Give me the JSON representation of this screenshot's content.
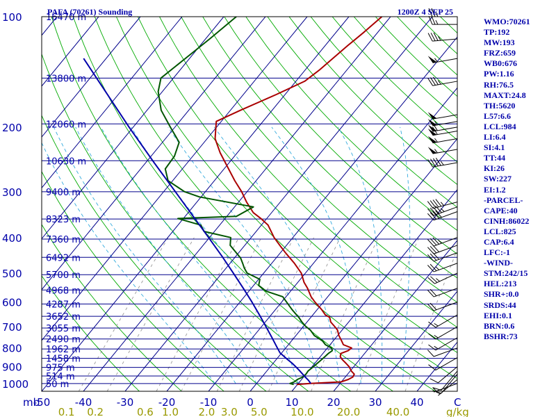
{
  "header": {
    "station_title": "PAFA (70261) Sounding",
    "time_label": "1200Z  4 SEP 25"
  },
  "colors": {
    "background": "#ffffff",
    "plot_area": "#ffffff",
    "frame": "#000000",
    "isobar": "#00008b",
    "dry_adiabat": "#00aa00",
    "isotherm": "#00008b",
    "mixing_ratio": "#999999",
    "moist_adiabat": "#33aadd",
    "temperature": "#aa0000",
    "dewpoint": "#005500",
    "parcel": "#0000aa",
    "axis_text": "#0000aa",
    "mixing_text": "#999900"
  },
  "units_label": "mb",
  "mixing_units_label": "g/kg",
  "chart_data": {
    "type": "line",
    "diagram": "skew-T log-P",
    "pressure_ticks": [
      100,
      200,
      300,
      400,
      500,
      600,
      700,
      800,
      900,
      1000
    ],
    "height_labels": [
      {
        "p": 100,
        "text": "16470 m"
      },
      {
        "p": 147,
        "text": "13800 m"
      },
      {
        "p": 196,
        "text": "12060 m"
      },
      {
        "p": 247,
        "text": "10630 m"
      },
      {
        "p": 300,
        "text": "9400 m"
      },
      {
        "p": 356,
        "text": "8323 m"
      },
      {
        "p": 404,
        "text": "7360 m"
      },
      {
        "p": 453,
        "text": "6492 m"
      },
      {
        "p": 505,
        "text": "5700 m"
      },
      {
        "p": 556,
        "text": "4968 m"
      },
      {
        "p": 607,
        "text": "4287 m"
      },
      {
        "p": 656,
        "text": "3652 m"
      },
      {
        "p": 706,
        "text": "3055 m"
      },
      {
        "p": 756,
        "text": "2490 m"
      },
      {
        "p": 805,
        "text": "1962 m"
      },
      {
        "p": 854,
        "text": "1458 m"
      },
      {
        "p": 904,
        "text": "975 m"
      },
      {
        "p": 954,
        "text": "514 m"
      },
      {
        "p": 1000,
        "text": "50 m"
      }
    ],
    "temperature_ticks": [
      -50,
      -40,
      -30,
      -20,
      -10,
      0,
      10,
      20,
      30,
      40
    ],
    "temperature_tick_labels": [
      "-50",
      "-40",
      "-30",
      "-20",
      "-10",
      "0",
      "10",
      "20",
      "30",
      "40"
    ],
    "temperature_units": "C",
    "mixing_ratio_labels": [
      "0.1",
      "0.2",
      "0.6",
      "1.0",
      "2.0",
      "3.0",
      "5.0",
      "10.0",
      "20.0",
      "40.0"
    ],
    "xlim": [
      -50,
      50
    ],
    "ylim": [
      1000,
      100
    ],
    "series": [
      {
        "key": "temperature",
        "points": [
          [
            1006,
            9.8
          ],
          [
            1000,
            12.8
          ],
          [
            990,
            19.9
          ],
          [
            975,
            21.2
          ],
          [
            960,
            21.8
          ],
          [
            943,
            21.6
          ],
          [
            925,
            20.3
          ],
          [
            900,
            18.9
          ],
          [
            880,
            17.4
          ],
          [
            860,
            15.8
          ],
          [
            845,
            14.8
          ],
          [
            828,
            14.3
          ],
          [
            814,
            15.5
          ],
          [
            800,
            15.8
          ],
          [
            784,
            13.2
          ],
          [
            765,
            12.0
          ],
          [
            740,
            10.3
          ],
          [
            715,
            8.9
          ],
          [
            700,
            7.6
          ],
          [
            680,
            5.7
          ],
          [
            660,
            4.5
          ],
          [
            650,
            3.0
          ],
          [
            628,
            1.0
          ],
          [
            600,
            -2.0
          ],
          [
            580,
            -4.0
          ],
          [
            550,
            -6.5
          ],
          [
            530,
            -8.5
          ],
          [
            500,
            -11.0
          ],
          [
            470,
            -14.6
          ],
          [
            440,
            -18.8
          ],
          [
            420,
            -21.6
          ],
          [
            400,
            -24.5
          ],
          [
            370,
            -28.4
          ],
          [
            355,
            -31.4
          ],
          [
            342,
            -34.4
          ],
          [
            320,
            -38.1
          ],
          [
            300,
            -41.3
          ],
          [
            280,
            -45.1
          ],
          [
            255,
            -49.9
          ],
          [
            235,
            -54.1
          ],
          [
            215,
            -58.1
          ],
          [
            193,
            -61.2
          ],
          [
            180,
            -57.6
          ],
          [
            163,
            -52.1
          ],
          [
            150,
            -47.9
          ],
          [
            140,
            -46.6
          ],
          [
            120,
            -44.6
          ],
          [
            110,
            -43.3
          ],
          [
            100,
            -42.1
          ]
        ]
      },
      {
        "key": "dewpoint",
        "points": [
          [
            1006,
            9.1
          ],
          [
            1000,
            8.0
          ],
          [
            990,
            8.7
          ],
          [
            975,
            9.0
          ],
          [
            960,
            9.8
          ],
          [
            943,
            10.0
          ],
          [
            925,
            9.9
          ],
          [
            900,
            10.3
          ],
          [
            880,
            10.6
          ],
          [
            860,
            10.9
          ],
          [
            845,
            11.1
          ],
          [
            828,
            11.3
          ],
          [
            814,
            11.7
          ],
          [
            800,
            11.0
          ],
          [
            784,
            8.9
          ],
          [
            765,
            7.4
          ],
          [
            740,
            4.4
          ],
          [
            715,
            2.4
          ],
          [
            700,
            0.7
          ],
          [
            680,
            -1.2
          ],
          [
            660,
            -2.9
          ],
          [
            650,
            -3.9
          ],
          [
            628,
            -6.1
          ],
          [
            600,
            -8.8
          ],
          [
            580,
            -10.8
          ],
          [
            560,
            -15.9
          ],
          [
            540,
            -18.8
          ],
          [
            520,
            -19.7
          ],
          [
            500,
            -24.0
          ],
          [
            485,
            -25.6
          ],
          [
            470,
            -27.0
          ],
          [
            455,
            -28.5
          ],
          [
            440,
            -30.6
          ],
          [
            420,
            -33.5
          ],
          [
            400,
            -34.9
          ],
          [
            385,
            -42.5
          ],
          [
            370,
            -44.5
          ],
          [
            355,
            -51.3
          ],
          [
            350,
            -37.7
          ],
          [
            330,
            -35.5
          ],
          [
            310,
            -50.4
          ],
          [
            300,
            -55.0
          ],
          [
            280,
            -61.1
          ],
          [
            260,
            -64.1
          ],
          [
            240,
            -64.4
          ],
          [
            220,
            -66.0
          ],
          [
            200,
            -71.1
          ],
          [
            180,
            -76.6
          ],
          [
            160,
            -81.0
          ],
          [
            147,
            -83.0
          ],
          [
            130,
            -81.0
          ],
          [
            115,
            -79.0
          ],
          [
            100,
            -77.0
          ]
        ]
      },
      {
        "key": "parcel",
        "points": [
          [
            1000,
            13.0
          ],
          [
            980,
            11.8
          ],
          [
            960,
            10.4
          ],
          [
            940,
            9.0
          ],
          [
            920,
            7.6
          ],
          [
            900,
            6.1
          ],
          [
            880,
            4.5
          ],
          [
            860,
            2.7
          ],
          [
            825,
            -0.4
          ],
          [
            800,
            -2.0
          ],
          [
            750,
            -5.3
          ],
          [
            700,
            -8.9
          ],
          [
            650,
            -12.8
          ],
          [
            600,
            -17.1
          ],
          [
            550,
            -21.9
          ],
          [
            500,
            -27.3
          ],
          [
            450,
            -33.3
          ],
          [
            400,
            -40.2
          ],
          [
            350,
            -48.1
          ],
          [
            300,
            -57.2
          ],
          [
            250,
            -68.0
          ],
          [
            200,
            -81.0
          ],
          [
            150,
            -97.3
          ],
          [
            130,
            -105.4
          ]
        ]
      }
    ],
    "wind_barbs": [
      {
        "p": 1000,
        "dir": 250,
        "kt": 5
      },
      {
        "p": 975,
        "dir": 230,
        "kt": 5
      },
      {
        "p": 943,
        "dir": 220,
        "kt": 10
      },
      {
        "p": 925,
        "dir": 220,
        "kt": 10
      },
      {
        "p": 900,
        "dir": 230,
        "kt": 10
      },
      {
        "p": 850,
        "dir": 240,
        "kt": 10
      },
      {
        "p": 800,
        "dir": 250,
        "kt": 10
      },
      {
        "p": 750,
        "dir": 240,
        "kt": 15
      },
      {
        "p": 700,
        "dir": 240,
        "kt": 15
      },
      {
        "p": 650,
        "dir": 240,
        "kt": 15
      },
      {
        "p": 600,
        "dir": 250,
        "kt": 20
      },
      {
        "p": 550,
        "dir": 250,
        "kt": 20
      },
      {
        "p": 500,
        "dir": 245,
        "kt": 25
      },
      {
        "p": 470,
        "dir": 250,
        "kt": 25
      },
      {
        "p": 440,
        "dir": 250,
        "kt": 30
      },
      {
        "p": 420,
        "dir": 250,
        "kt": 30
      },
      {
        "p": 400,
        "dir": 250,
        "kt": 35
      },
      {
        "p": 340,
        "dir": 250,
        "kt": 40
      },
      {
        "p": 330,
        "dir": 250,
        "kt": 45
      },
      {
        "p": 320,
        "dir": 255,
        "kt": 45
      },
      {
        "p": 250,
        "dir": 260,
        "kt": 45
      },
      {
        "p": 230,
        "dir": 260,
        "kt": 55
      },
      {
        "p": 215,
        "dir": 260,
        "kt": 55
      },
      {
        "p": 205,
        "dir": 260,
        "kt": 60
      },
      {
        "p": 200,
        "dir": 260,
        "kt": 60
      },
      {
        "p": 193,
        "dir": 260,
        "kt": 55
      },
      {
        "p": 185,
        "dir": 260,
        "kt": 50
      },
      {
        "p": 150,
        "dir": 260,
        "kt": 35
      },
      {
        "p": 130,
        "dir": 260,
        "kt": 55
      },
      {
        "p": 115,
        "dir": 265,
        "kt": 35
      },
      {
        "p": 105,
        "dir": 270,
        "kt": 25
      },
      {
        "p": 100,
        "dir": 270,
        "kt": 25
      }
    ]
  },
  "indices": [
    "WMO:70261",
    "TP:192",
    "MW:193",
    "FRZ:659",
    "WB0:676",
    "PW:1.16",
    "RH:76.5",
    "MAXT:24.8",
    "TH:5620",
    "L57:6.6",
    "LCL:984",
    "LI:6.4",
    "SI:4.1",
    "TT:44",
    "KI:26",
    "SW:227",
    "EI:1.2",
    "-PARCEL-",
    "CAPE:40",
    "CINH:86022",
    "LCL:825",
    "CAP:6.4",
    "LFC:-1",
    "-WIND-",
    "STM:242/15",
    "HEL:213",
    "SHR+:0.0",
    "SRDS:44",
    "EHI:0.1",
    "BRN:0.6",
    "BSHR:73"
  ]
}
